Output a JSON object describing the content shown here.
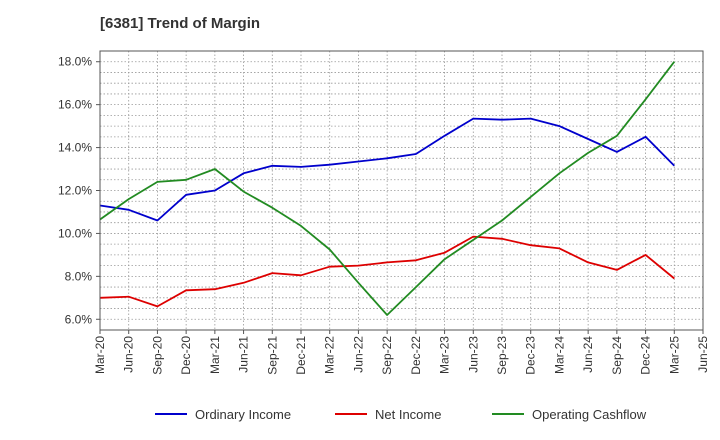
{
  "chart_data": {
    "type": "line",
    "title": "[6381]  Trend of Margin",
    "xlabel": "",
    "ylabel": "",
    "ylim": [
      5.5,
      18.5
    ],
    "y_ticks": [
      "6.0%",
      "8.0%",
      "10.0%",
      "12.0%",
      "14.0%",
      "16.0%",
      "18.0%"
    ],
    "y_tick_values": [
      6,
      8,
      10,
      12,
      14,
      16,
      18
    ],
    "x_ticks": [
      "Mar-20",
      "Jun-20",
      "Sep-20",
      "Dec-20",
      "Mar-21",
      "Jun-21",
      "Sep-21",
      "Dec-21",
      "Mar-22",
      "Jun-22",
      "Sep-22",
      "Dec-22",
      "Mar-23",
      "Jun-23",
      "Sep-23",
      "Dec-23",
      "Mar-24",
      "Jun-24",
      "Sep-24",
      "Dec-24",
      "Mar-25",
      "Jun-25"
    ],
    "grid": true,
    "legend_position": "bottom",
    "series": [
      {
        "name": "Ordinary Income",
        "color": "#0000cc",
        "values": [
          11.3,
          11.1,
          10.6,
          11.8,
          12.0,
          12.8,
          13.15,
          13.1,
          13.2,
          13.35,
          13.5,
          13.7,
          14.55,
          15.35,
          15.3,
          15.35,
          15.0,
          14.4,
          13.8,
          14.5,
          13.15
        ]
      },
      {
        "name": "Net Income",
        "color": "#dd0000",
        "values": [
          7.0,
          7.05,
          6.6,
          7.35,
          7.4,
          7.7,
          8.15,
          8.05,
          8.45,
          8.5,
          8.65,
          8.75,
          9.1,
          9.85,
          9.75,
          9.45,
          9.3,
          8.65,
          8.3,
          9.0,
          7.9
        ]
      },
      {
        "name": "Operating Cashflow",
        "color": "#228b22",
        "values": [
          10.65,
          11.6,
          12.4,
          12.5,
          13.0,
          11.95,
          11.2,
          10.35,
          9.25,
          7.7,
          6.2,
          7.5,
          8.8,
          9.7,
          10.6,
          11.7,
          12.8,
          13.75,
          14.55,
          16.25,
          18.0
        ]
      }
    ]
  }
}
